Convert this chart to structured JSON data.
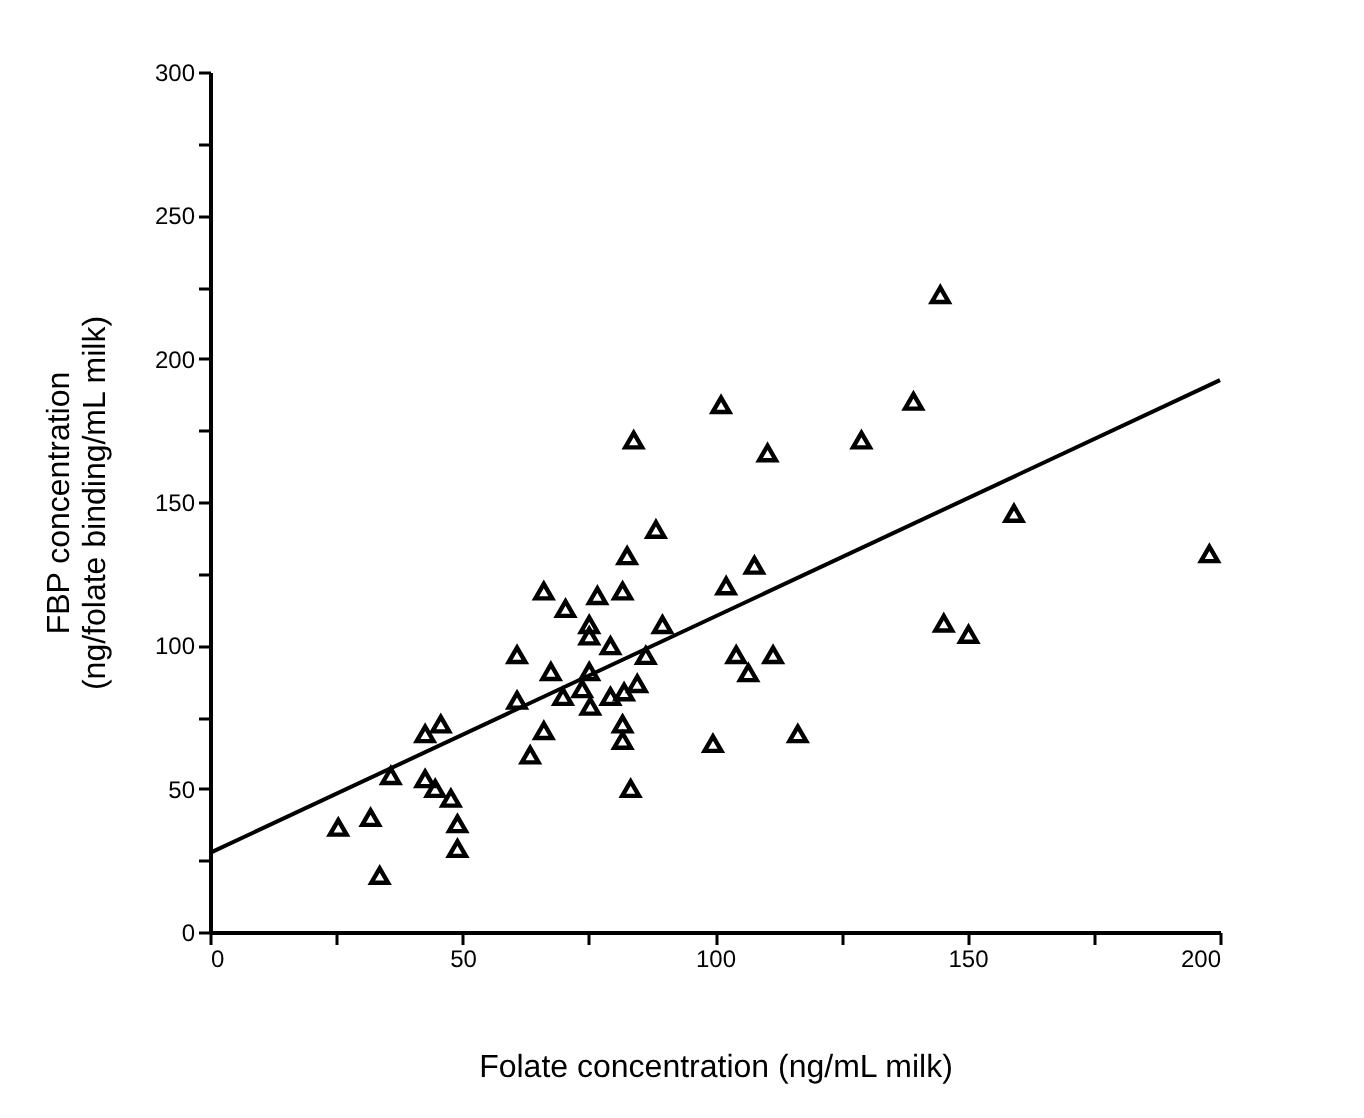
{
  "chart_data": {
    "type": "scatter",
    "xlabel": "Folate  concentration  (ng/mL  milk)",
    "ylabel": "FBP concentration\n(ng/folate  binding/mL  milk)",
    "xlim": [
      0,
      200
    ],
    "ylim": [
      0,
      300
    ],
    "xticks": [
      0,
      {
        "value": 25,
        "label": null
      },
      50,
      {
        "value": 75,
        "label": null
      },
      100,
      {
        "value": 125,
        "label": null
      },
      150,
      {
        "value": 175,
        "label": null
      },
      200
    ],
    "yticks": [
      0,
      {
        "value": 25,
        "label": null
      },
      50,
      {
        "value": 75,
        "label": null
      },
      100,
      {
        "value": 125,
        "label": null
      },
      150,
      {
        "value": 175,
        "label": null
      },
      200,
      {
        "value": 225,
        "label": null
      },
      250,
      {
        "value": 275,
        "label": null
      },
      300
    ],
    "grid": false,
    "series": [
      {
        "marker": "triangle",
        "color": "#000000",
        "x": [
          25.4,
          31.8,
          33.6,
          35.8,
          42.6,
          45.7,
          42.6,
          44.6,
          47.7,
          49.0,
          49.0,
          60.8,
          60.8,
          66.1,
          67.5,
          66.1,
          63.4,
          70.4,
          69.9,
          75.1,
          75.1,
          76.7,
          81.7,
          82.6,
          83.9,
          88.3,
          79.3,
          75.1,
          73.7,
          75.3,
          79.3,
          82.0,
          84.6,
          86.3,
          89.6,
          81.7,
          81.7,
          83.3,
          101.2,
          102.2,
          107.8,
          110.4,
          104.2,
          106.6,
          111.5,
          99.6,
          116.4,
          129.0,
          139.3,
          144.6,
          159.2,
          145.3,
          150.2,
          197.9
        ],
        "values": [
          36.5,
          39.9,
          19.7,
          54.5,
          69.1,
          72.5,
          53.4,
          50.0,
          46.6,
          37.7,
          29.1,
          96.7,
          80.8,
          118.9,
          90.8,
          70.2,
          61.7,
          112.8,
          82.1,
          107.2,
          103.2,
          117.3,
          118.9,
          131.2,
          171.6,
          140.4,
          99.8,
          90.8,
          84.8,
          78.7,
          82.1,
          83.7,
          86.6,
          96.4,
          107.2,
          72.5,
          66.8,
          50.0,
          183.9,
          120.7,
          127.9,
          167.1,
          96.7,
          90.4,
          96.7,
          65.7,
          69.1,
          171.6,
          185.1,
          222.3,
          146.0,
          107.7,
          103.8,
          131.9
        ]
      },
      {
        "type": "line",
        "line_style": "solid",
        "color": "#000000",
        "x": [
          0,
          200
        ],
        "values": [
          27.6,
          192.5
        ]
      }
    ]
  }
}
